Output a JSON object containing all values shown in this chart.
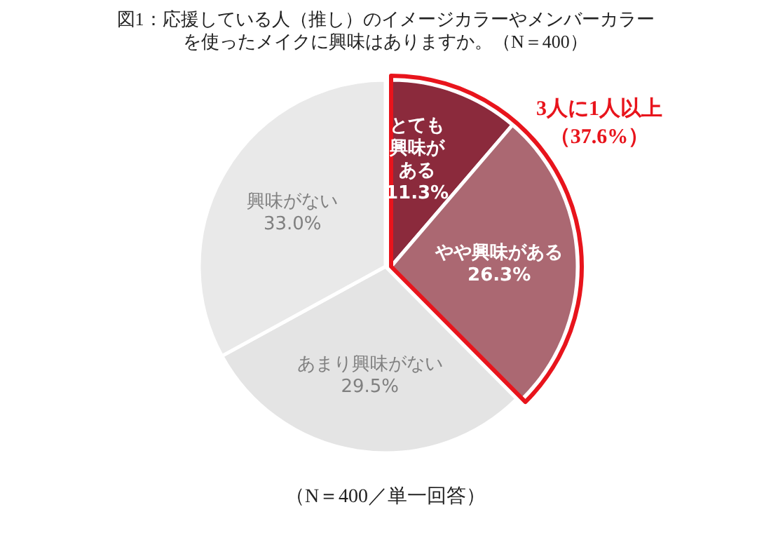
{
  "chart_data": {
    "type": "pie",
    "title": "図1：応援している人（推し）のイメージカラーやメンバーカラーを使ったメイクに興味はありますか。（N＝400）",
    "categories": [
      "とても興味がある",
      "やや興味がある",
      "あまり興味がない",
      "興味がない"
    ],
    "values": [
      11.3,
      26.3,
      29.5,
      33.0
    ],
    "colors": [
      "#8b2a3c",
      "#ab6872",
      "#e4e4e4",
      "#e9e9e9"
    ],
    "value_labels": [
      "11.3%",
      "26.3%",
      "29.5%",
      "33.0%"
    ],
    "annotations": [
      "3人に1人以上（37.6%）",
      "（N＝400／単一回答）"
    ]
  }
}
